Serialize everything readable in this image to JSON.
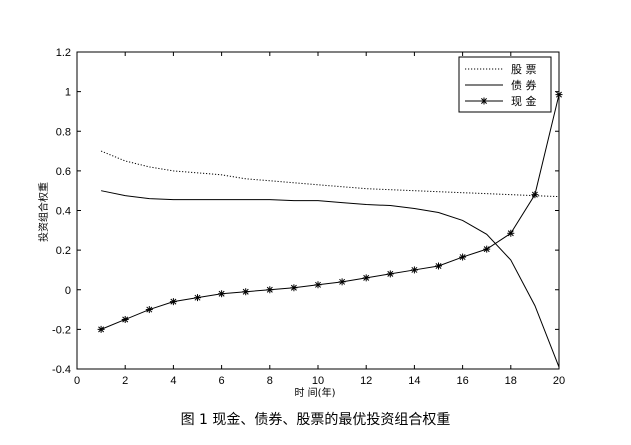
{
  "caption": "图 1 现金、债券、股票的最优投资组合权重",
  "chart_data": {
    "type": "line",
    "title": "",
    "xlabel": "时 间(年)",
    "ylabel": "投资组合权重",
    "xlim": [
      0,
      20
    ],
    "ylim": [
      -0.4,
      1.2
    ],
    "x_ticks": [
      0,
      2,
      4,
      6,
      8,
      10,
      12,
      14,
      16,
      18,
      20
    ],
    "y_ticks": [
      -0.4,
      -0.2,
      0,
      0.2,
      0.4,
      0.6,
      0.8,
      1,
      1.2
    ],
    "x_tick_labels": [
      "0",
      "2",
      "4",
      "6",
      "8",
      "10",
      "12",
      "14",
      "16",
      "18",
      "20"
    ],
    "y_tick_labels": [
      "-0.4",
      "-0.2",
      "0",
      "0.2",
      "0.4",
      "0.6",
      "0.8",
      "1",
      "1.2"
    ],
    "grid": false,
    "legend_position": "top-right",
    "x": [
      1,
      2,
      3,
      4,
      5,
      6,
      7,
      8,
      9,
      10,
      11,
      12,
      13,
      14,
      15,
      16,
      17,
      18,
      19,
      20
    ],
    "series": [
      {
        "name": "股 票",
        "style": "dotted",
        "marker": "none",
        "values": [
          0.7,
          0.65,
          0.62,
          0.6,
          0.59,
          0.58,
          0.56,
          0.55,
          0.54,
          0.53,
          0.52,
          0.51,
          0.505,
          0.5,
          0.495,
          0.49,
          0.485,
          0.48,
          0.475,
          0.47
        ]
      },
      {
        "name": "债 券",
        "style": "solid",
        "marker": "none",
        "values": [
          0.5,
          0.475,
          0.46,
          0.455,
          0.455,
          0.455,
          0.455,
          0.455,
          0.45,
          0.45,
          0.44,
          0.43,
          0.425,
          0.41,
          0.39,
          0.35,
          0.28,
          0.15,
          -0.08,
          -0.39
        ]
      },
      {
        "name": "现 金",
        "style": "solid",
        "marker": "asterisk",
        "values": [
          -0.2,
          -0.15,
          -0.1,
          -0.06,
          -0.04,
          -0.02,
          -0.01,
          0.0,
          0.01,
          0.025,
          0.04,
          0.06,
          0.08,
          0.1,
          0.12,
          0.165,
          0.205,
          0.285,
          0.48,
          0.985
        ]
      }
    ]
  }
}
